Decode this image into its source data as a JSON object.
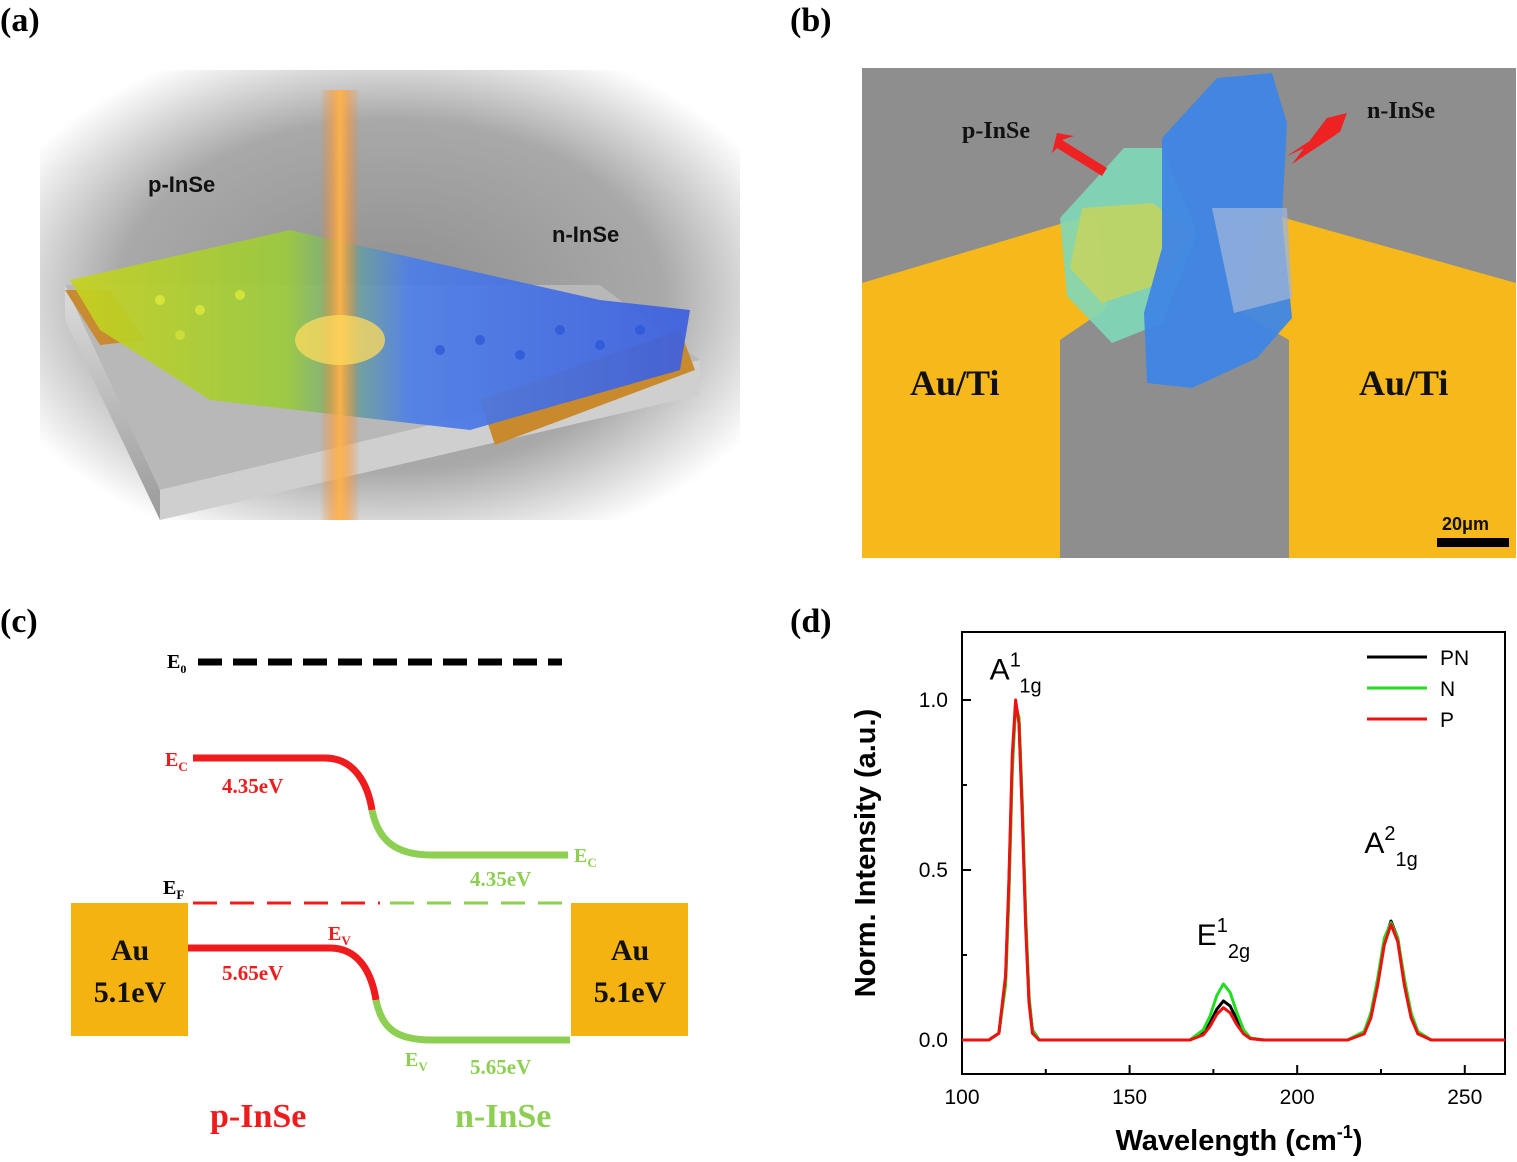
{
  "panels": {
    "a": {
      "label": "(a)",
      "p_material": "p-InSe",
      "n_material": "n-InSe"
    },
    "b": {
      "label": "(b)",
      "p_material": "p-InSe",
      "n_material": "n-InSe",
      "left_electrode": "Au/Ti",
      "right_electrode": "Au/Ti",
      "scale_bar": "20μm",
      "colors": {
        "background": "#8e8e8e",
        "electrode": "#f6b81a",
        "p_flake": "#7fd8b8",
        "n_flake": "#3f86e6"
      }
    },
    "c": {
      "label": "(c)",
      "vacuum_level": {
        "symbol": "E",
        "sub": "0"
      },
      "conduction_p": {
        "symbol": "E",
        "sub": "C",
        "energy": "4.35eV"
      },
      "conduction_n": {
        "symbol": "E",
        "sub": "C",
        "energy": "4.35eV"
      },
      "fermi": {
        "symbol": "E",
        "sub": "F"
      },
      "valence_p": {
        "symbol": "E",
        "sub": "V",
        "energy": "5.65eV"
      },
      "valence_n": {
        "symbol": "E",
        "sub": "V",
        "energy": "5.65eV"
      },
      "left_contact": {
        "metal": "Au",
        "work_function": "5.1eV"
      },
      "right_contact": {
        "metal": "Au",
        "work_function": "5.1eV"
      },
      "p_region": "p-InSe",
      "n_region": "n-InSe",
      "colors": {
        "p": "#ee1c1c",
        "n": "#8ccf52",
        "contact": "#f5b312",
        "vacuum": "#000000"
      }
    },
    "d": {
      "label": "(d)"
    }
  },
  "chart_data": {
    "type": "line",
    "xlabel": "Wavelength (cm",
    "xlabel_sup": "-1",
    "xlabel_end": ")",
    "ylabel": "Norm. Intensity (a.u.)",
    "xlim": [
      100,
      262
    ],
    "ylim": [
      -0.1,
      1.2
    ],
    "x_ticks": [
      100,
      150,
      200,
      250
    ],
    "y_ticks": [
      0.0,
      0.5,
      1.0
    ],
    "x_tick_labels": [
      "100",
      "150",
      "200",
      "250"
    ],
    "y_tick_labels": [
      "0.0",
      "0.5",
      "1.0"
    ],
    "legend_position": "top-right",
    "annotations": [
      {
        "base": "A",
        "sup": "1",
        "sub": "1g",
        "x": 116,
        "y": 1.06
      },
      {
        "base": "E",
        "sup": "1",
        "sub": "2g",
        "x": 178,
        "y": 0.28
      },
      {
        "base": "A",
        "sup": "2",
        "sub": "1g",
        "x": 228,
        "y": 0.55
      }
    ],
    "series": [
      {
        "name": "PN",
        "color": "#000000",
        "x": [
          100,
          108,
          111,
          113,
          114,
          115,
          116,
          117,
          118,
          119,
          120,
          121,
          123,
          126,
          150,
          168,
          172,
          174,
          176,
          178,
          180,
          182,
          184,
          186,
          190,
          215,
          220,
          222,
          224,
          226,
          228,
          230,
          232,
          234,
          236,
          240,
          262
        ],
        "y": [
          0.0,
          0.0,
          0.02,
          0.18,
          0.45,
          0.82,
          0.99,
          0.94,
          0.68,
          0.35,
          0.12,
          0.03,
          0.0,
          0.0,
          0.0,
          0.0,
          0.02,
          0.05,
          0.09,
          0.115,
          0.1,
          0.06,
          0.025,
          0.005,
          0.0,
          0.0,
          0.02,
          0.07,
          0.17,
          0.29,
          0.35,
          0.3,
          0.17,
          0.07,
          0.02,
          0.0,
          0.0
        ]
      },
      {
        "name": "N",
        "color": "#22dd22",
        "x": [
          100,
          108,
          111,
          113,
          114,
          115,
          116,
          117,
          118,
          119,
          120,
          121,
          123,
          126,
          150,
          168,
          172,
          174,
          176,
          178,
          180,
          182,
          184,
          186,
          190,
          215,
          220,
          222,
          224,
          226,
          228,
          230,
          232,
          234,
          236,
          240,
          262
        ],
        "y": [
          0.0,
          0.0,
          0.02,
          0.16,
          0.42,
          0.79,
          0.98,
          0.95,
          0.7,
          0.37,
          0.13,
          0.03,
          0.0,
          0.0,
          0.0,
          0.0,
          0.03,
          0.07,
          0.13,
          0.165,
          0.14,
          0.08,
          0.03,
          0.006,
          0.0,
          0.0,
          0.025,
          0.08,
          0.18,
          0.3,
          0.345,
          0.3,
          0.18,
          0.08,
          0.025,
          0.0,
          0.0
        ]
      },
      {
        "name": "P",
        "color": "#ee1111",
        "x": [
          100,
          108,
          111,
          113,
          114,
          115,
          116,
          117,
          118,
          119,
          120,
          121,
          123,
          126,
          150,
          168,
          172,
          174,
          176,
          178,
          180,
          182,
          184,
          186,
          190,
          215,
          220,
          222,
          224,
          226,
          228,
          230,
          232,
          234,
          236,
          240,
          262
        ],
        "y": [
          0.0,
          0.0,
          0.02,
          0.19,
          0.47,
          0.84,
          1.0,
          0.93,
          0.66,
          0.33,
          0.11,
          0.02,
          0.0,
          0.0,
          0.0,
          0.0,
          0.015,
          0.04,
          0.075,
          0.095,
          0.08,
          0.045,
          0.018,
          0.004,
          0.0,
          0.0,
          0.018,
          0.065,
          0.16,
          0.28,
          0.34,
          0.29,
          0.16,
          0.065,
          0.018,
          0.0,
          0.0
        ]
      }
    ]
  }
}
